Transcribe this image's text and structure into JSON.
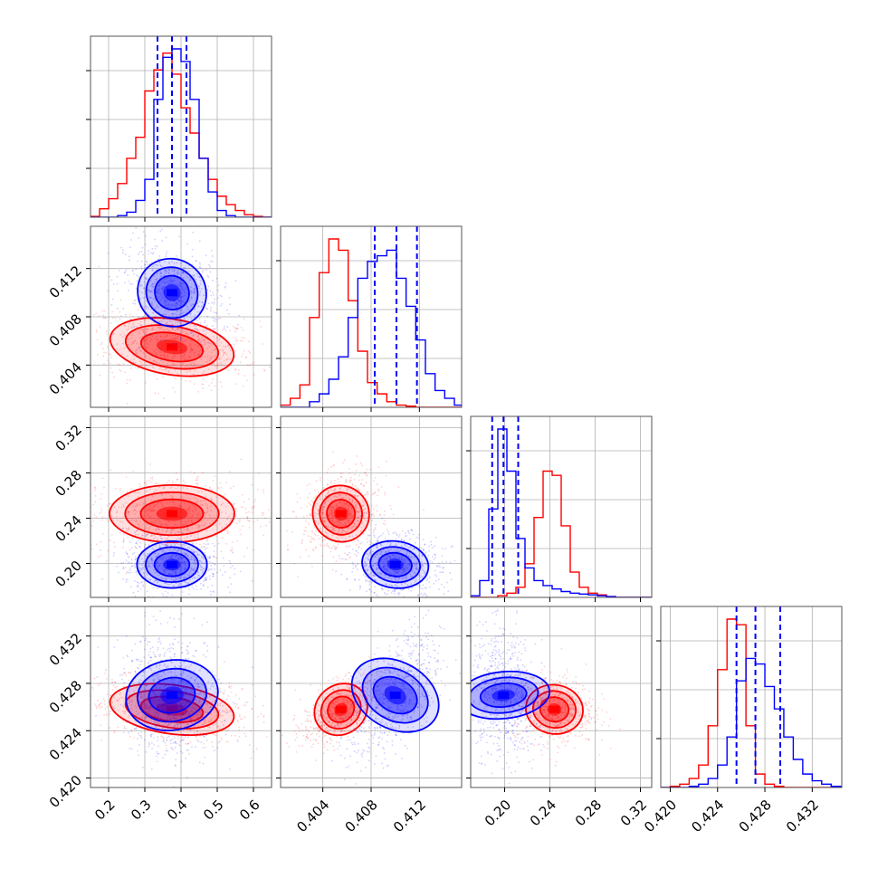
{
  "colors": {
    "blue": "#0000ff",
    "red": "#ff0000",
    "grid": "#b0b0b0",
    "frame": "#555555"
  },
  "chart_data": {
    "type": "corner",
    "params": [
      {
        "range": [
          0.15,
          0.65
        ],
        "ticks": [
          0.2,
          0.3,
          0.4,
          0.5,
          0.6
        ],
        "tick_labels": [
          "0.2",
          "0.3",
          "0.4",
          "0.5",
          "0.6"
        ],
        "hist_bins": [
          0.15,
          0.175,
          0.2,
          0.225,
          0.25,
          0.275,
          0.3,
          0.325,
          0.35,
          0.375,
          0.4,
          0.425,
          0.45,
          0.475,
          0.5,
          0.525,
          0.55,
          0.575,
          0.6,
          0.625,
          0.65
        ],
        "hist_blue": [
          0,
          0,
          0,
          2,
          6,
          20,
          45,
          140,
          190,
          200,
          185,
          140,
          70,
          30,
          8,
          2,
          0,
          0,
          0,
          0
        ],
        "hist_red": [
          1,
          10,
          22,
          40,
          70,
          95,
          150,
          175,
          195,
          170,
          130,
          100,
          70,
          45,
          25,
          15,
          8,
          3,
          1,
          0
        ],
        "quantiles_blue": [
          0.335,
          0.375,
          0.415
        ]
      },
      {
        "range": [
          0.4005,
          0.4155
        ],
        "ticks": [
          0.404,
          0.408,
          0.412
        ],
        "tick_labels": [
          "0.404",
          "0.408",
          "0.412"
        ],
        "hist_bins": [
          0.4005,
          0.4013,
          0.4021,
          0.4029,
          0.4037,
          0.4045,
          0.4053,
          0.4061,
          0.4069,
          0.4077,
          0.4085,
          0.4093,
          0.4101,
          0.4109,
          0.4117,
          0.4125,
          0.4133,
          0.4141,
          0.4149,
          0.4155
        ],
        "hist_blue": [
          0,
          0,
          0,
          5,
          12,
          25,
          45,
          80,
          115,
          130,
          135,
          140,
          115,
          90,
          60,
          30,
          15,
          8,
          2
        ],
        "hist_red": [
          2,
          8,
          20,
          80,
          120,
          150,
          140,
          95,
          50,
          22,
          12,
          5,
          2,
          1,
          0,
          0,
          0,
          0,
          0
        ],
        "quantiles_blue": [
          0.4083,
          0.4101,
          0.4118
        ]
      },
      {
        "range": [
          0.17,
          0.33
        ],
        "ticks": [
          0.2,
          0.24,
          0.28,
          0.32
        ],
        "tick_labels": [
          "0.20",
          "0.24",
          "0.28",
          "0.32"
        ],
        "hist_bins": [
          0.17,
          0.178,
          0.186,
          0.194,
          0.202,
          0.21,
          0.218,
          0.226,
          0.234,
          0.242,
          0.25,
          0.258,
          0.266,
          0.274,
          0.282,
          0.29,
          0.298,
          0.306,
          0.314,
          0.322,
          0.33
        ],
        "hist_blue": [
          2,
          20,
          105,
          200,
          150,
          70,
          35,
          20,
          14,
          10,
          7,
          5,
          4,
          3,
          2,
          1,
          0,
          0,
          0,
          0
        ],
        "hist_red": [
          0,
          0,
          0,
          2,
          5,
          12,
          40,
          95,
          150,
          145,
          85,
          30,
          12,
          5,
          3,
          1,
          0,
          0,
          0,
          0
        ],
        "quantiles_blue": [
          0.189,
          0.199,
          0.212
        ]
      },
      {
        "range": [
          0.4192,
          0.4345
        ],
        "ticks": [
          0.42,
          0.424,
          0.428,
          0.432
        ],
        "tick_labels": [
          "0.420",
          "0.424",
          "0.428",
          "0.432"
        ],
        "hist_bins": [
          0.4192,
          0.42,
          0.4208,
          0.4216,
          0.4224,
          0.4232,
          0.424,
          0.4248,
          0.4256,
          0.4264,
          0.4272,
          0.428,
          0.4288,
          0.4296,
          0.4304,
          0.4312,
          0.432,
          0.4328,
          0.4336,
          0.4345
        ],
        "hist_blue": [
          0,
          0,
          0,
          1,
          3,
          8,
          20,
          45,
          95,
          115,
          110,
          90,
          70,
          45,
          25,
          12,
          6,
          3,
          1
        ],
        "hist_red": [
          0,
          1,
          3,
          8,
          20,
          55,
          105,
          150,
          145,
          55,
          12,
          3,
          1,
          0,
          0,
          0,
          0,
          0,
          0
        ],
        "quantiles_blue": [
          0.4256,
          0.4272,
          0.4293
        ]
      }
    ],
    "series": [
      {
        "name": "",
        "color": "blue",
        "means": [
          0.375,
          0.41,
          0.199,
          0.427
        ],
        "sds": [
          0.042,
          0.0012,
          0.009,
          0.0017
        ]
      },
      {
        "name": "",
        "color": "red",
        "means": [
          0.375,
          0.4055,
          0.244,
          0.4258
        ],
        "sds": [
          0.075,
          0.001,
          0.011,
          0.0009
        ]
      }
    ],
    "grid": true
  }
}
